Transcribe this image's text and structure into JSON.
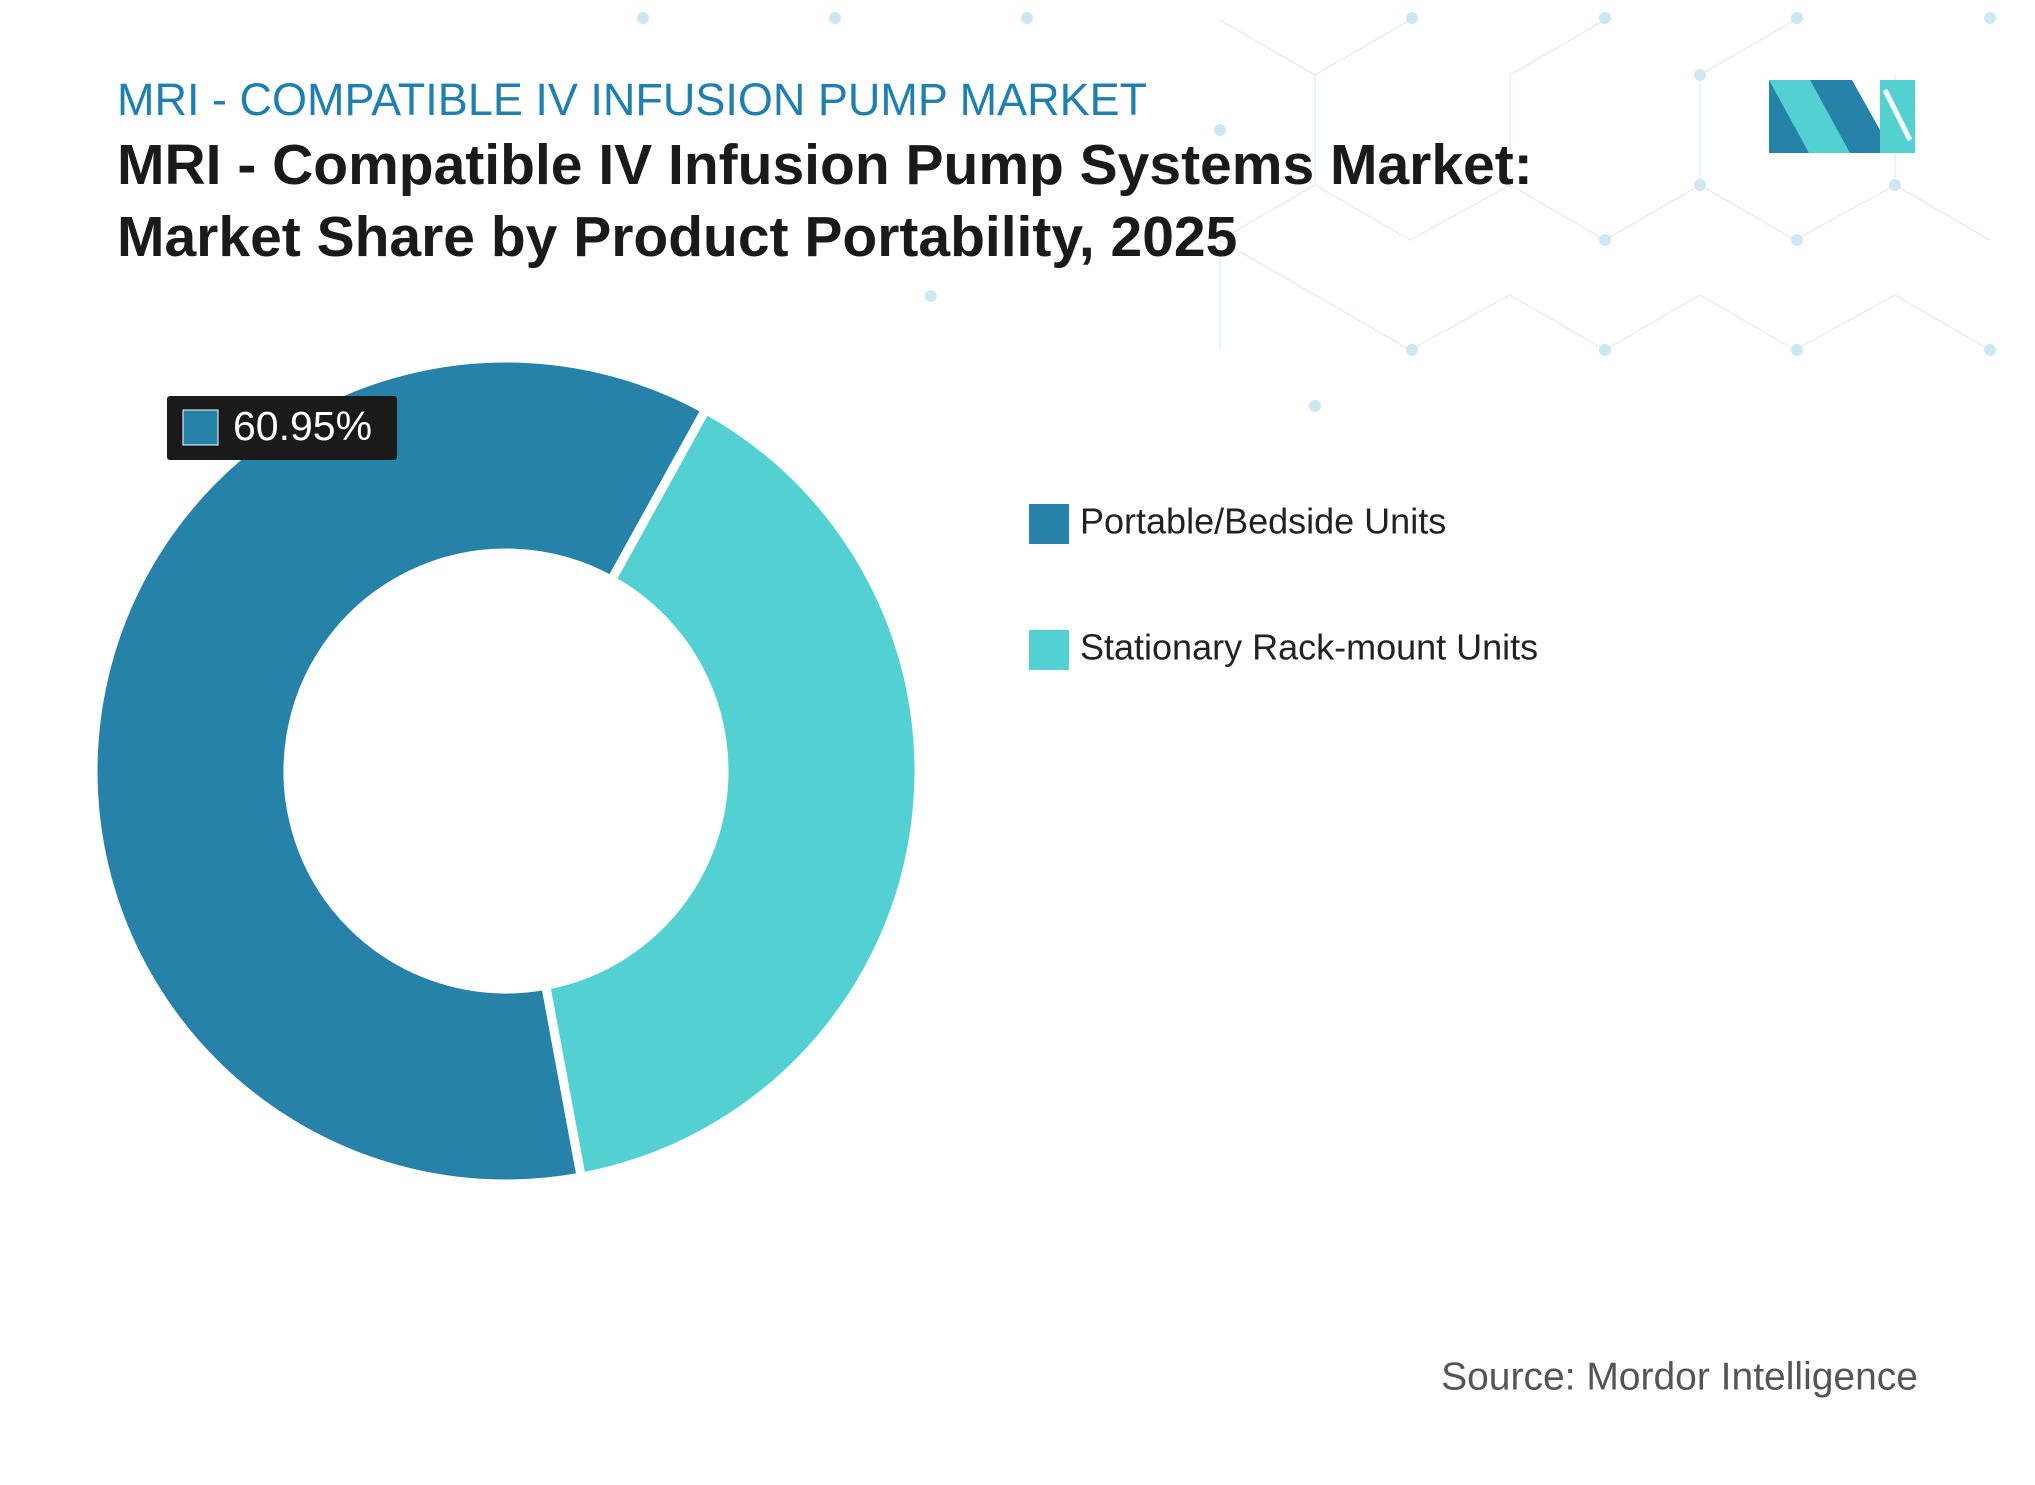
{
  "chart_data": {
    "type": "donut",
    "subtitle": "MRI - COMPATIBLE IV INFUSION PUMP MARKET",
    "title": [
      "MRI - Compatible IV Infusion Pump Systems Market:",
      "Market Share by Product Portability, 2025"
    ],
    "categories": [
      "Portable/Bedside Units",
      "Stationary Rack-mount Units"
    ],
    "values": [
      60.95,
      39.05
    ],
    "value_labels": [
      "60.95%",
      null
    ],
    "colors": [
      "#2682a8",
      "#53d0d2"
    ],
    "legend": "right",
    "source": "Source: Mordor Intelligence"
  }
}
